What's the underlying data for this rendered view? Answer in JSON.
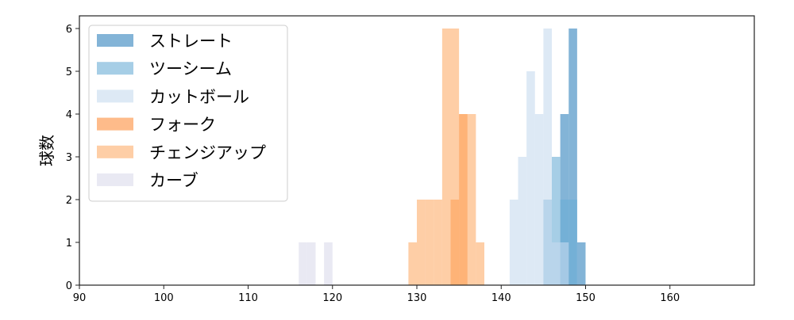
{
  "chart_data": {
    "type": "histogram",
    "title": "",
    "xlabel": "",
    "ylabel": "球数",
    "xlim": [
      90,
      170
    ],
    "ylim": [
      0,
      6.2
    ],
    "xticks": [
      90,
      100,
      110,
      120,
      130,
      140,
      150,
      160
    ],
    "yticks": [
      0,
      1,
      2,
      3,
      4,
      5,
      6
    ],
    "legend_position": "top-left",
    "bin_width": 1,
    "series": [
      {
        "name": "ストレート",
        "color": "#3182bd",
        "bins": [
          [
            147,
            4
          ],
          [
            148,
            6
          ],
          [
            149,
            1
          ]
        ]
      },
      {
        "name": "ツーシーム",
        "color": "#6baed6",
        "bins": [
          [
            145,
            2
          ],
          [
            146,
            3
          ],
          [
            147,
            2
          ],
          [
            148,
            2
          ]
        ]
      },
      {
        "name": "カットボール",
        "color": "#c6dbef",
        "bins": [
          [
            141,
            2
          ],
          [
            142,
            3
          ],
          [
            143,
            5
          ],
          [
            144,
            4
          ],
          [
            145,
            6
          ],
          [
            146,
            1
          ],
          [
            147,
            1
          ]
        ]
      },
      {
        "name": "フォーク",
        "color": "#fd8d3c",
        "bins": [
          [
            134,
            2
          ],
          [
            135,
            4
          ]
        ]
      },
      {
        "name": "チェンジアップ",
        "color": "#fdae6b",
        "bins": [
          [
            129,
            1
          ],
          [
            130,
            2
          ],
          [
            131,
            2
          ],
          [
            132,
            2
          ],
          [
            133,
            6
          ],
          [
            134,
            6
          ],
          [
            135,
            4
          ],
          [
            136,
            4
          ],
          [
            137,
            1
          ]
        ]
      },
      {
        "name": "カーブ",
        "color": "#dadaeb",
        "bins": [
          [
            116,
            1
          ],
          [
            117,
            1
          ],
          [
            119,
            1
          ]
        ]
      }
    ]
  }
}
